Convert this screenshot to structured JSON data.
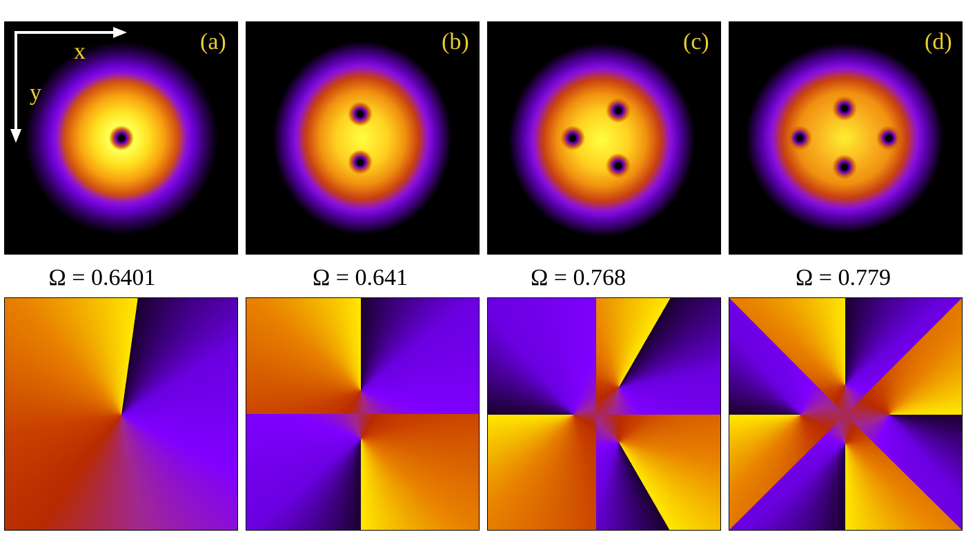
{
  "panels": [
    {
      "label": "(a)",
      "omega": "Ω = 0.6401"
    },
    {
      "label": "(b)",
      "omega": "Ω = 0.641"
    },
    {
      "label": "(c)",
      "omega": "Ω = 0.768"
    },
    {
      "label": "(d)",
      "omega": "Ω = 0.779"
    }
  ],
  "axes": {
    "x": "x",
    "y": "y"
  }
}
